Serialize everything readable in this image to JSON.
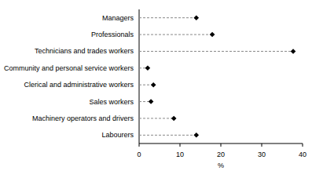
{
  "chart_data": {
    "type": "dot",
    "orientation": "horizontal",
    "categories": [
      "Managers",
      "Professionals",
      "Technicians and trades workers",
      "Community and personal service workers",
      "Clerical and administrative workers",
      "Sales workers",
      "Machinery operators and drivers",
      "Labourers"
    ],
    "values": [
      14,
      17.9,
      37.7,
      2.1,
      3.5,
      2.9,
      8.5,
      14
    ],
    "xlim": [
      0,
      40
    ],
    "xticks": [
      0,
      10,
      20,
      30,
      40
    ],
    "x_label": "%",
    "color": "#000000",
    "marker": "diamond",
    "line_style": "dashed"
  }
}
